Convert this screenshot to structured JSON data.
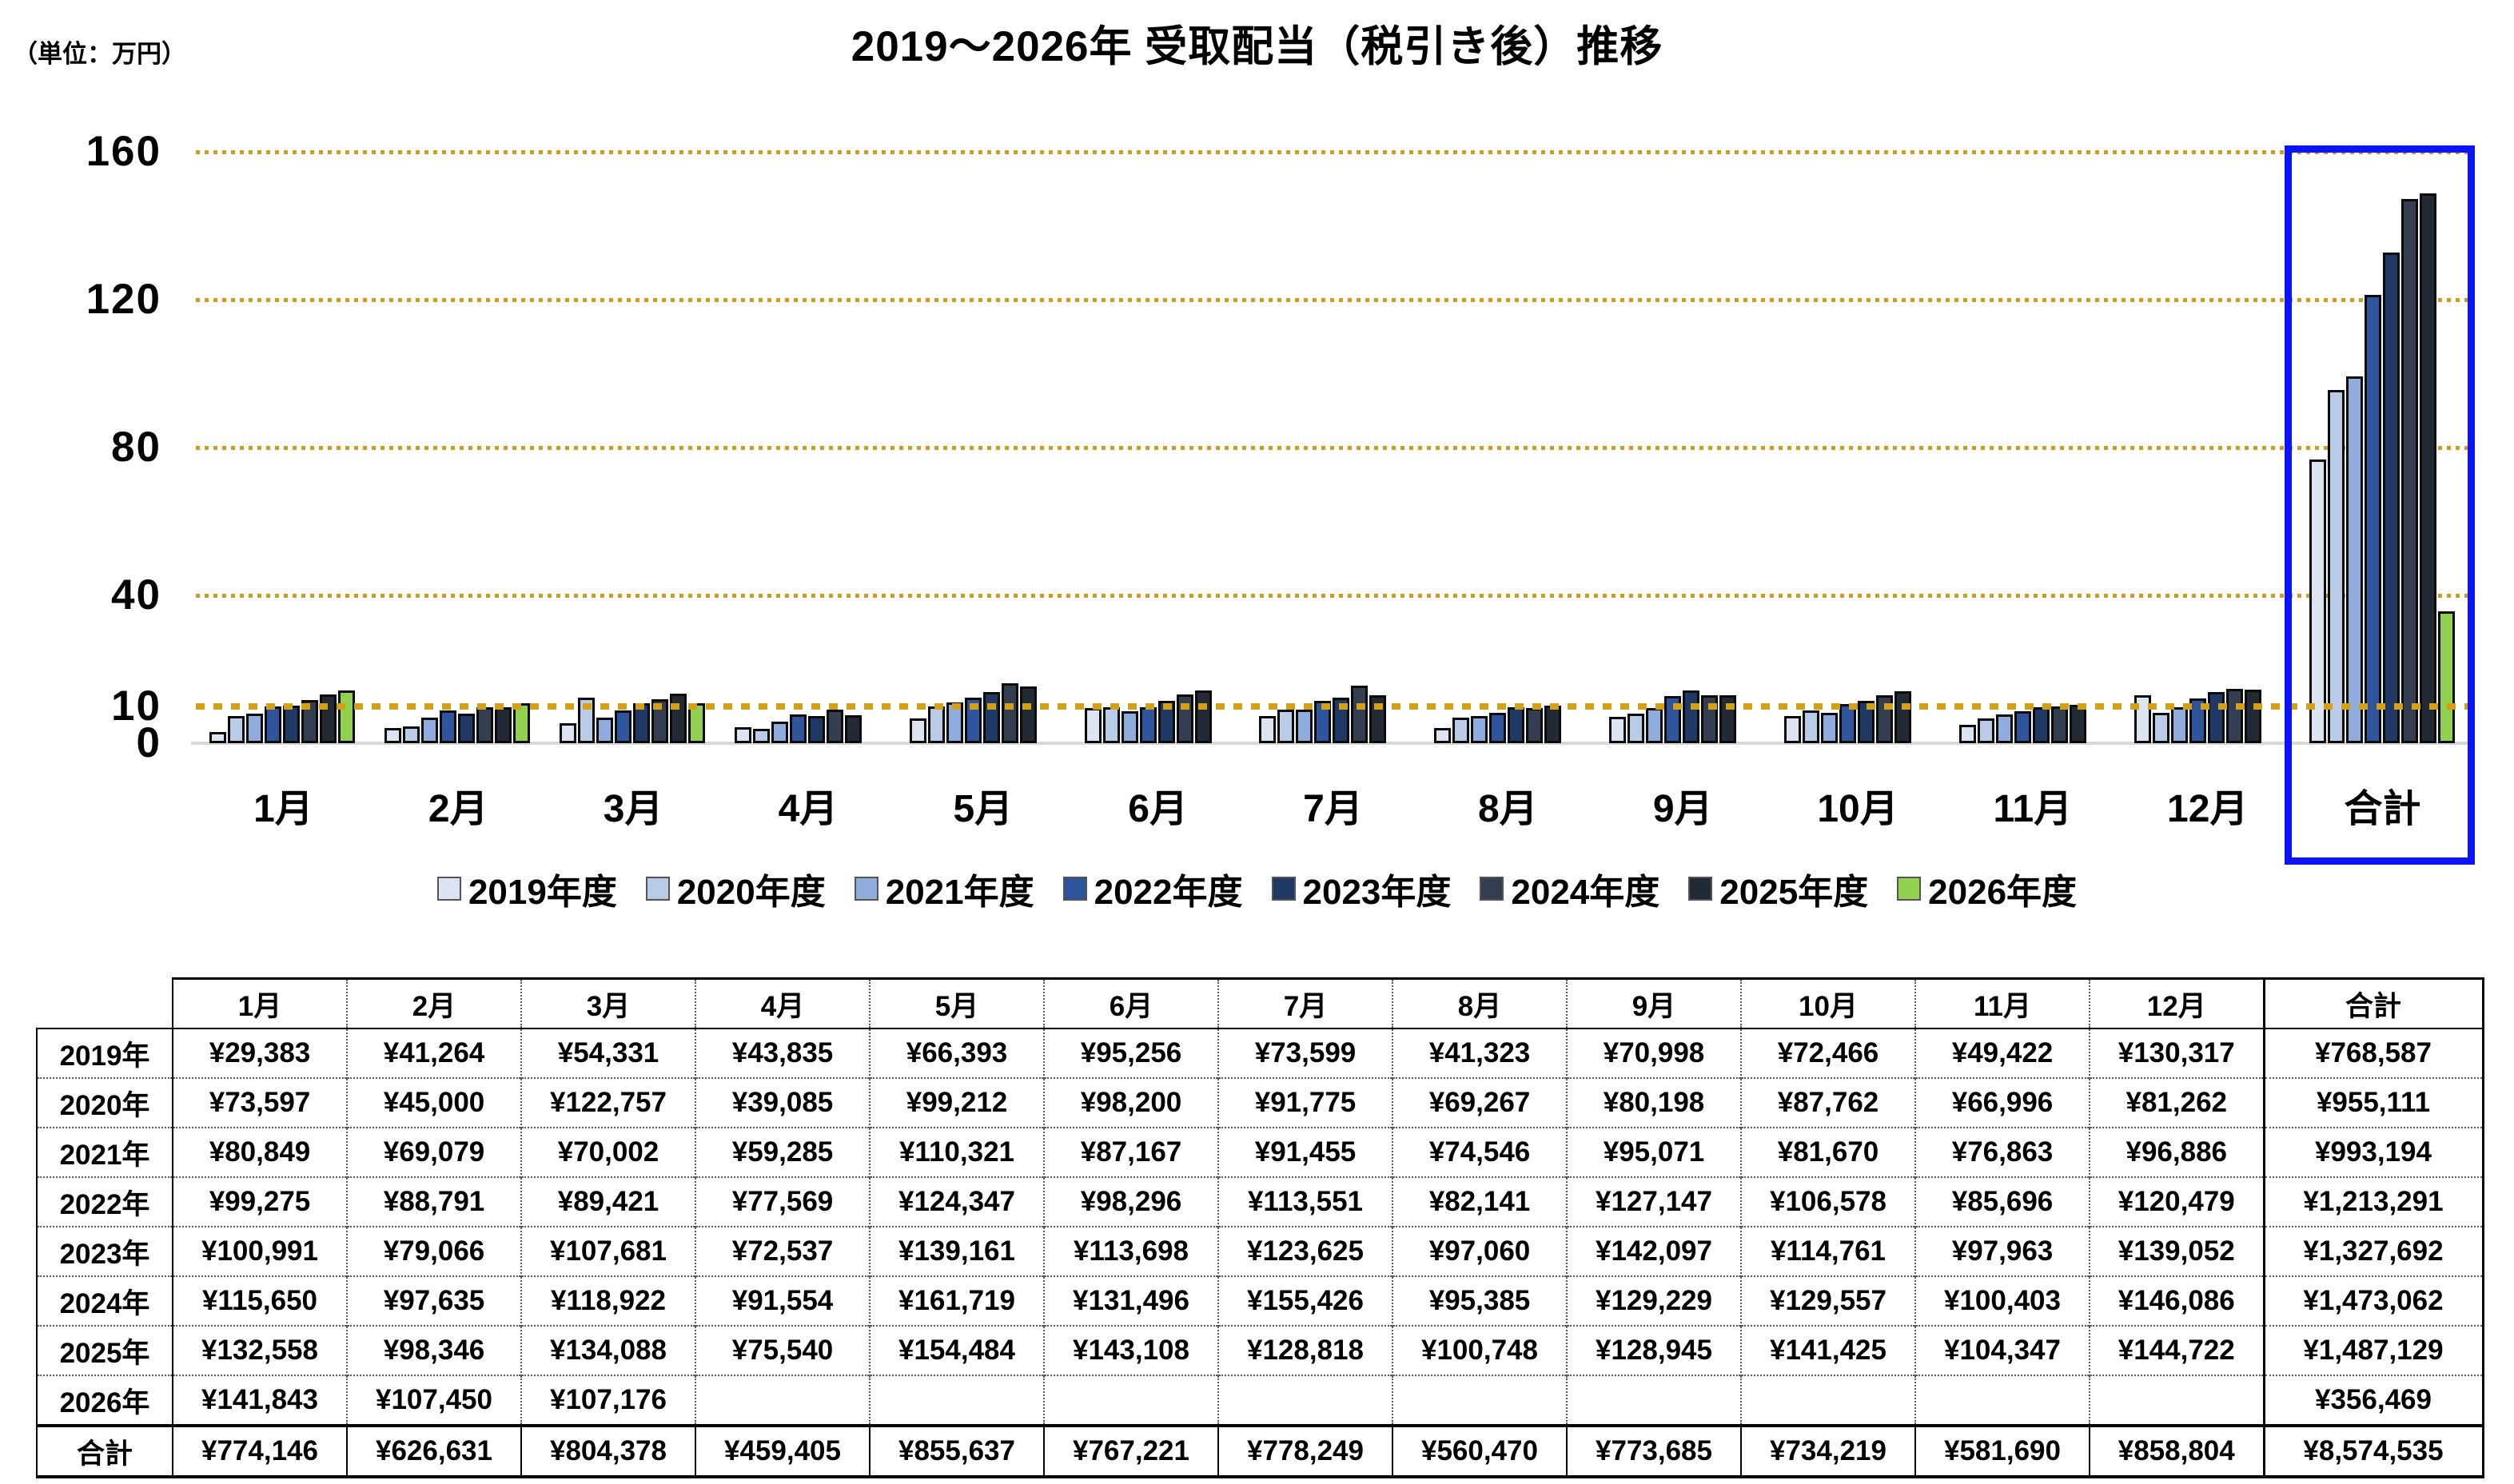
{
  "chart": {
    "title": "2019～2026年 受取配当（税引き後）推移",
    "unit_label": "（単位：万円）",
    "colors": {
      "gridline_gold": "#cf9d1d",
      "target_line_gold": "#d4a017",
      "highlight_box_blue": "#0914fa",
      "baseline_gray": "#d8d8d8",
      "bar_outline": "#0b0b0b"
    }
  },
  "chart_data": {
    "type": "bar",
    "title": "2019～2026年 受取配当（税引き後）推移",
    "unit_label": "（単位：万円）",
    "xlabel": "",
    "ylabel": "万円",
    "ylim": [
      0,
      160
    ],
    "y_ticks": [
      0,
      10,
      40,
      80,
      120,
      160
    ],
    "y_tick_labels": [
      "0",
      "10",
      "40",
      "80",
      "120",
      "160"
    ],
    "gridlines": "dotted gold at 40/80/120/160, thick dashed gold target line at 10",
    "target_line_value": 10,
    "highlight": "合計 category enclosed in blue box",
    "legend_position": "bottom",
    "categories": [
      "1月",
      "2月",
      "3月",
      "4月",
      "5月",
      "6月",
      "7月",
      "8月",
      "9月",
      "10月",
      "11月",
      "12月",
      "合計"
    ],
    "series": [
      {
        "name": "2019年度",
        "color": "#dbe4f0",
        "values": [
          2.94,
          4.13,
          5.43,
          4.38,
          6.64,
          9.53,
          7.36,
          4.13,
          7.1,
          7.25,
          4.94,
          13.03,
          76.86
        ]
      },
      {
        "name": "2020年度",
        "color": "#b9cbe7",
        "values": [
          7.36,
          4.5,
          12.28,
          3.91,
          9.92,
          9.82,
          9.18,
          6.93,
          8.02,
          8.78,
          6.7,
          8.13,
          95.51
        ]
      },
      {
        "name": "2021年度",
        "color": "#90acdc",
        "values": [
          8.08,
          6.91,
          7.0,
          5.93,
          11.03,
          8.72,
          9.15,
          7.45,
          9.51,
          8.17,
          7.69,
          9.69,
          99.32
        ]
      },
      {
        "name": "2022年度",
        "color": "#2e549b",
        "values": [
          9.93,
          8.88,
          8.94,
          7.76,
          12.43,
          9.83,
          11.36,
          8.21,
          12.71,
          10.66,
          8.57,
          12.05,
          121.33
        ]
      },
      {
        "name": "2023年度",
        "color": "#1f3864",
        "values": [
          10.1,
          7.91,
          10.77,
          7.25,
          13.92,
          11.37,
          12.36,
          9.71,
          14.21,
          11.48,
          9.8,
          13.91,
          132.77
        ]
      },
      {
        "name": "2024年度",
        "color": "#333f50",
        "values": [
          11.57,
          9.76,
          11.89,
          9.16,
          16.17,
          13.15,
          15.54,
          9.54,
          12.92,
          12.96,
          10.04,
          14.61,
          147.31
        ]
      },
      {
        "name": "2025年度",
        "color": "#222a35",
        "values": [
          13.26,
          9.83,
          13.41,
          7.55,
          15.45,
          14.31,
          12.88,
          10.07,
          12.89,
          14.14,
          10.43,
          14.47,
          148.71
        ]
      },
      {
        "name": "2026年度",
        "color": "#92d050",
        "values": [
          14.18,
          10.75,
          10.72,
          null,
          null,
          null,
          null,
          null,
          null,
          null,
          null,
          null,
          35.65
        ]
      }
    ]
  },
  "legend": {
    "items": [
      "2019年度",
      "2020年度",
      "2021年度",
      "2022年度",
      "2023年度",
      "2024年度",
      "2025年度",
      "2026年度"
    ]
  },
  "table": {
    "col_headers": [
      "",
      "1月",
      "2月",
      "3月",
      "4月",
      "5月",
      "6月",
      "7月",
      "8月",
      "9月",
      "10月",
      "11月",
      "12月",
      "合計"
    ],
    "rows": [
      {
        "label": "2019年",
        "cells": [
          "¥29,383",
          "¥41,264",
          "¥54,331",
          "¥43,835",
          "¥66,393",
          "¥95,256",
          "¥73,599",
          "¥41,323",
          "¥70,998",
          "¥72,466",
          "¥49,422",
          "¥130,317",
          "¥768,587"
        ]
      },
      {
        "label": "2020年",
        "cells": [
          "¥73,597",
          "¥45,000",
          "¥122,757",
          "¥39,085",
          "¥99,212",
          "¥98,200",
          "¥91,775",
          "¥69,267",
          "¥80,198",
          "¥87,762",
          "¥66,996",
          "¥81,262",
          "¥955,111"
        ]
      },
      {
        "label": "2021年",
        "cells": [
          "¥80,849",
          "¥69,079",
          "¥70,002",
          "¥59,285",
          "¥110,321",
          "¥87,167",
          "¥91,455",
          "¥74,546",
          "¥95,071",
          "¥81,670",
          "¥76,863",
          "¥96,886",
          "¥993,194"
        ]
      },
      {
        "label": "2022年",
        "cells": [
          "¥99,275",
          "¥88,791",
          "¥89,421",
          "¥77,569",
          "¥124,347",
          "¥98,296",
          "¥113,551",
          "¥82,141",
          "¥127,147",
          "¥106,578",
          "¥85,696",
          "¥120,479",
          "¥1,213,291"
        ]
      },
      {
        "label": "2023年",
        "cells": [
          "¥100,991",
          "¥79,066",
          "¥107,681",
          "¥72,537",
          "¥139,161",
          "¥113,698",
          "¥123,625",
          "¥97,060",
          "¥142,097",
          "¥114,761",
          "¥97,963",
          "¥139,052",
          "¥1,327,692"
        ]
      },
      {
        "label": "2024年",
        "cells": [
          "¥115,650",
          "¥97,635",
          "¥118,922",
          "¥91,554",
          "¥161,719",
          "¥131,496",
          "¥155,426",
          "¥95,385",
          "¥129,229",
          "¥129,557",
          "¥100,403",
          "¥146,086",
          "¥1,473,062"
        ]
      },
      {
        "label": "2025年",
        "cells": [
          "¥132,558",
          "¥98,346",
          "¥134,088",
          "¥75,540",
          "¥154,484",
          "¥143,108",
          "¥128,818",
          "¥100,748",
          "¥128,945",
          "¥141,425",
          "¥104,347",
          "¥144,722",
          "¥1,487,129"
        ]
      },
      {
        "label": "2026年",
        "cells": [
          "¥141,843",
          "¥107,450",
          "¥107,176",
          "",
          "",
          "",
          "",
          "",
          "",
          "",
          "",
          "",
          "¥356,469"
        ]
      },
      {
        "label": "合計",
        "cells": [
          "¥774,146",
          "¥626,631",
          "¥804,378",
          "¥459,405",
          "¥855,637",
          "¥767,221",
          "¥778,249",
          "¥560,470",
          "¥773,685",
          "¥734,219",
          "¥581,690",
          "¥858,804",
          "¥8,574,535"
        ],
        "is_total": true
      }
    ]
  }
}
